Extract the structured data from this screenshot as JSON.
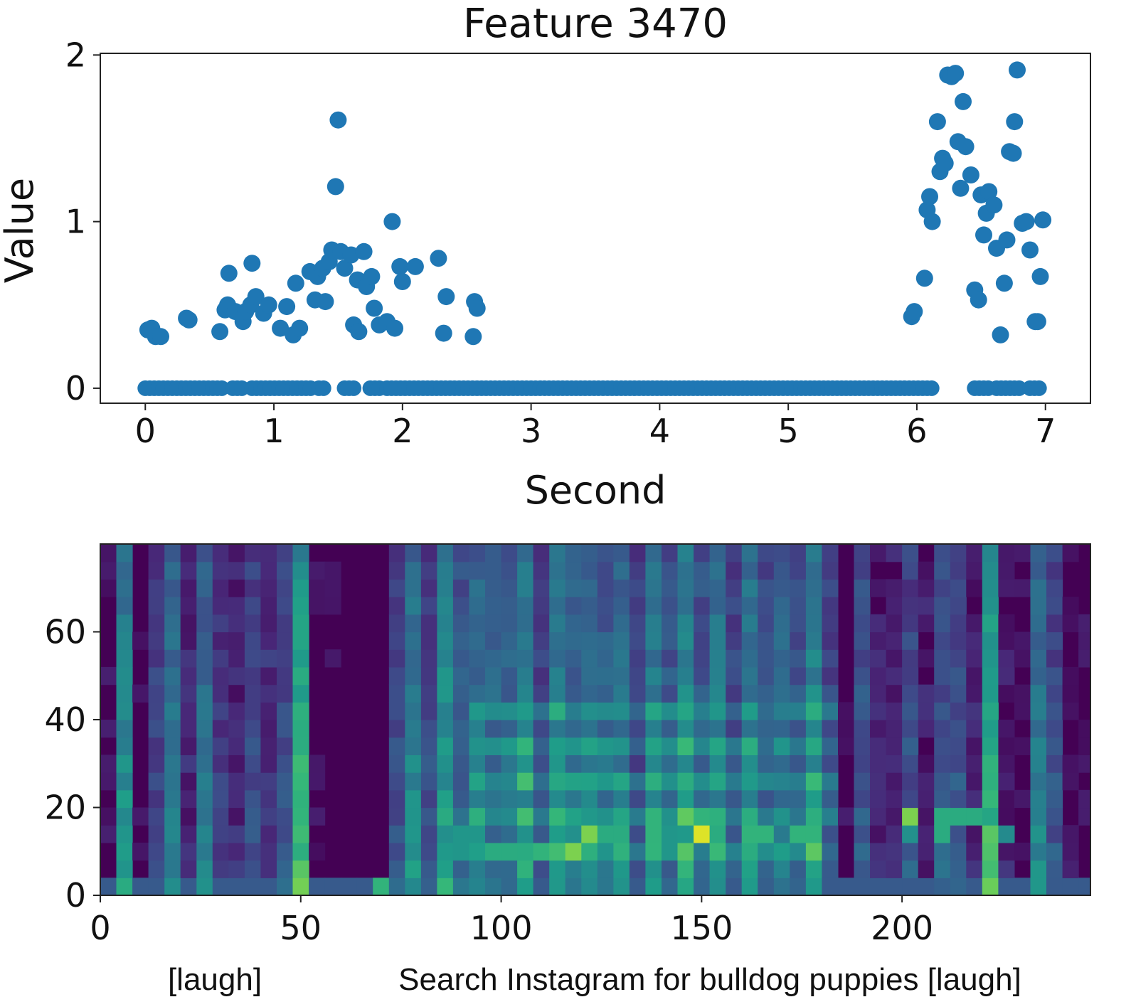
{
  "chart_data": [
    {
      "type": "scatter",
      "title": "Feature 3470",
      "xlabel": "Second",
      "ylabel": "Value",
      "xlim": [
        -0.35,
        7.35
      ],
      "ylim": [
        -0.09,
        2.01
      ],
      "xticks": [
        0,
        1,
        2,
        3,
        4,
        5,
        6,
        7
      ],
      "yticks": [
        0,
        1,
        2
      ],
      "color": "#1f77b4",
      "zero_series": {
        "y": 0,
        "x_ranges": [
          [
            0,
            0.6
          ],
          [
            0.68,
            0.78
          ],
          [
            0.83,
            1.3
          ],
          [
            1.35,
            1.4
          ],
          [
            1.55,
            1.62
          ],
          [
            1.75,
            1.82
          ],
          [
            1.88,
            6.12
          ],
          [
            6.45,
            6.58
          ],
          [
            6.62,
            6.82
          ],
          [
            6.88,
            6.95
          ]
        ],
        "step": 0.035
      },
      "points": [
        [
          0.02,
          0.35
        ],
        [
          0.05,
          0.36
        ],
        [
          0.08,
          0.31
        ],
        [
          0.12,
          0.31
        ],
        [
          0.32,
          0.42
        ],
        [
          0.34,
          0.41
        ],
        [
          0.58,
          0.34
        ],
        [
          0.62,
          0.47
        ],
        [
          0.64,
          0.5
        ],
        [
          0.65,
          0.69
        ],
        [
          0.7,
          0.46
        ],
        [
          0.76,
          0.4
        ],
        [
          0.78,
          0.46
        ],
        [
          0.82,
          0.5
        ],
        [
          0.83,
          0.75
        ],
        [
          0.86,
          0.55
        ],
        [
          0.92,
          0.45
        ],
        [
          0.96,
          0.5
        ],
        [
          1.05,
          0.36
        ],
        [
          1.1,
          0.49
        ],
        [
          1.15,
          0.32
        ],
        [
          1.17,
          0.63
        ],
        [
          1.2,
          0.36
        ],
        [
          1.28,
          0.7
        ],
        [
          1.32,
          0.53
        ],
        [
          1.34,
          0.67
        ],
        [
          1.38,
          0.72
        ],
        [
          1.4,
          0.52
        ],
        [
          1.43,
          0.76
        ],
        [
          1.45,
          0.83
        ],
        [
          1.48,
          1.21
        ],
        [
          1.5,
          1.61
        ],
        [
          1.52,
          0.82
        ],
        [
          1.55,
          0.72
        ],
        [
          1.6,
          0.8
        ],
        [
          1.62,
          0.38
        ],
        [
          1.65,
          0.65
        ],
        [
          1.66,
          0.34
        ],
        [
          1.7,
          0.82
        ],
        [
          1.72,
          0.61
        ],
        [
          1.76,
          0.67
        ],
        [
          1.78,
          0.48
        ],
        [
          1.82,
          0.38
        ],
        [
          1.88,
          0.4
        ],
        [
          1.92,
          1.0
        ],
        [
          1.94,
          0.36
        ],
        [
          1.98,
          0.73
        ],
        [
          2.0,
          0.64
        ],
        [
          2.1,
          0.73
        ],
        [
          2.28,
          0.78
        ],
        [
          2.32,
          0.33
        ],
        [
          2.34,
          0.55
        ],
        [
          2.55,
          0.31
        ],
        [
          2.56,
          0.52
        ],
        [
          2.58,
          0.48
        ],
        [
          5.96,
          0.43
        ],
        [
          5.98,
          0.46
        ],
        [
          6.06,
          0.66
        ],
        [
          6.08,
          1.07
        ],
        [
          6.1,
          1.15
        ],
        [
          6.12,
          1.0
        ],
        [
          6.16,
          1.6
        ],
        [
          6.18,
          1.3
        ],
        [
          6.2,
          1.38
        ],
        [
          6.22,
          1.35
        ],
        [
          6.24,
          1.88
        ],
        [
          6.27,
          1.87
        ],
        [
          6.3,
          1.89
        ],
        [
          6.32,
          1.48
        ],
        [
          6.34,
          1.2
        ],
        [
          6.36,
          1.72
        ],
        [
          6.38,
          1.45
        ],
        [
          6.42,
          1.28
        ],
        [
          6.45,
          0.59
        ],
        [
          6.48,
          0.53
        ],
        [
          6.5,
          1.16
        ],
        [
          6.52,
          0.92
        ],
        [
          6.54,
          1.05
        ],
        [
          6.56,
          1.18
        ],
        [
          6.6,
          1.1
        ],
        [
          6.62,
          0.84
        ],
        [
          6.65,
          0.32
        ],
        [
          6.68,
          0.63
        ],
        [
          6.7,
          0.89
        ],
        [
          6.72,
          1.42
        ],
        [
          6.75,
          1.41
        ],
        [
          6.76,
          1.6
        ],
        [
          6.78,
          1.91
        ],
        [
          6.82,
          0.99
        ],
        [
          6.85,
          1.0
        ],
        [
          6.88,
          0.83
        ],
        [
          6.92,
          0.4
        ],
        [
          6.94,
          0.4
        ],
        [
          6.96,
          0.67
        ],
        [
          6.98,
          1.01
        ]
      ]
    },
    {
      "type": "heatmap",
      "colormap": "viridis",
      "xlim": [
        0,
        247
      ],
      "ylim": [
        0,
        80
      ],
      "xticks": [
        0,
        50,
        100,
        150,
        200
      ],
      "yticks": [
        0,
        20,
        40,
        60
      ],
      "caption_left": "[laugh]",
      "caption_right": "Search Instagram for bulldog puppies [laugh]"
    }
  ]
}
